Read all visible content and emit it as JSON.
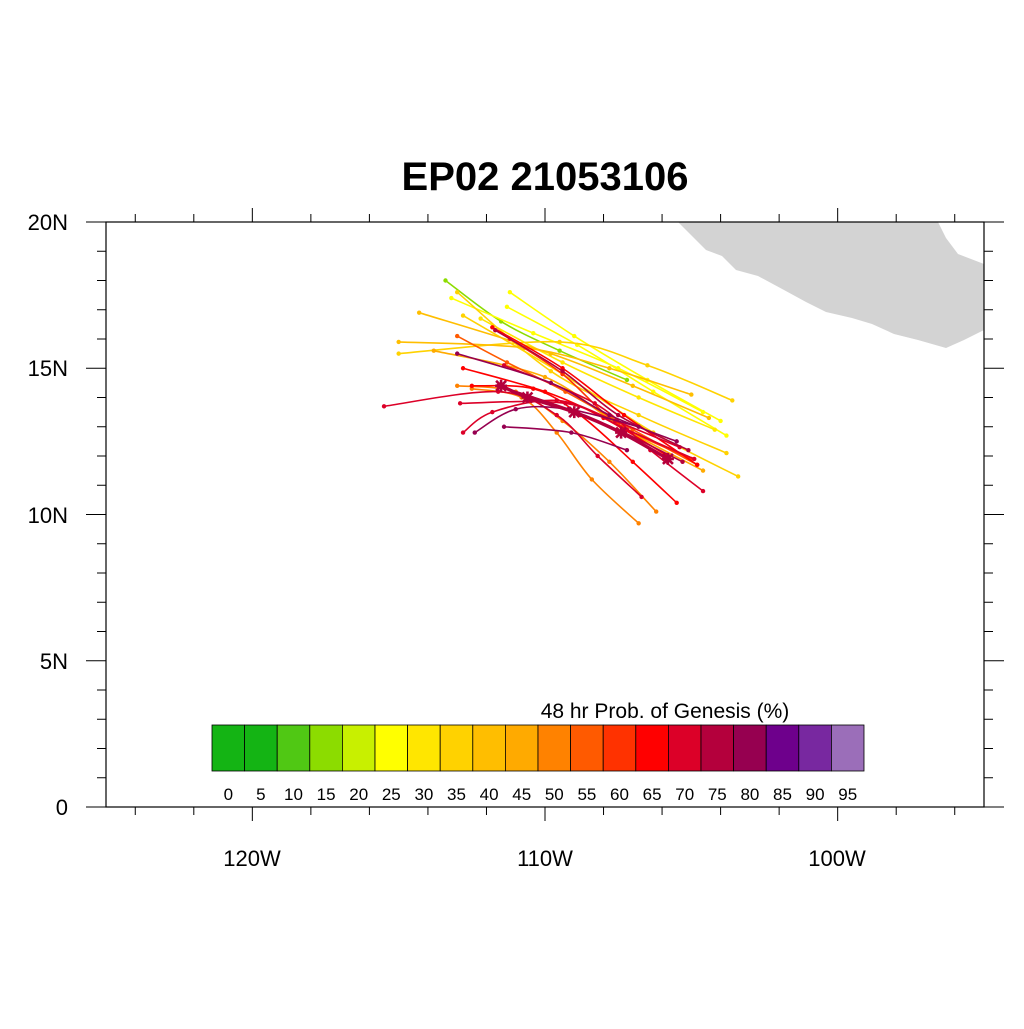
{
  "title": "EP02 21053106",
  "lat_labels": [
    "20N",
    "15N",
    "10N",
    "5N",
    "0"
  ],
  "lon_labels": [
    "120W",
    "110W",
    "100W"
  ],
  "legend": {
    "title": "48 hr Prob. of Genesis (%)",
    "labels": [
      "0",
      "5",
      "10",
      "15",
      "20",
      "25",
      "30",
      "35",
      "40",
      "45",
      "50",
      "55",
      "60",
      "65",
      "70",
      "75",
      "80",
      "85",
      "90",
      "95"
    ],
    "colors": [
      "#14b414",
      "#14b414",
      "#50c814",
      "#8cdc00",
      "#c8f000",
      "#ffff00",
      "#ffe600",
      "#ffd200",
      "#ffbe00",
      "#ffaa00",
      "#ff8200",
      "#ff5a00",
      "#ff3200",
      "#ff0000",
      "#dc0028",
      "#b4003c",
      "#960050",
      "#6e008c",
      "#7828a0",
      "#9b6eb9"
    ]
  },
  "land_color": "#d3d3d3",
  "chart_data": {
    "type": "map-tracks",
    "title": "EP02 21053106",
    "lon_range": [
      -125,
      -95
    ],
    "lat_range": [
      0,
      20
    ],
    "lat_ticks": [
      20,
      15,
      10,
      5,
      0
    ],
    "lon_ticks": [
      -120,
      -110,
      -100
    ],
    "color_scale": "48 hr Prob. of Genesis (%)",
    "mean_track": [
      [
        -105.8,
        11.9
      ],
      [
        -107.4,
        12.8
      ],
      [
        -109.0,
        13.5
      ],
      [
        -110.6,
        14.0
      ],
      [
        -111.5,
        14.4
      ]
    ],
    "tracks": [
      {
        "p": 15,
        "pts": [
          [
            -107.2,
            14.6
          ],
          [
            -109.5,
            15.6
          ],
          [
            -111.5,
            16.6
          ],
          [
            -113.4,
            18.0
          ]
        ]
      },
      {
        "p": 25,
        "pts": [
          [
            -104.0,
            13.2
          ],
          [
            -106.5,
            14.6
          ],
          [
            -109.0,
            16.1
          ],
          [
            -111.2,
            17.6
          ]
        ]
      },
      {
        "p": 25,
        "pts": [
          [
            -103.8,
            12.7
          ],
          [
            -106.3,
            14.2
          ],
          [
            -108.9,
            15.8
          ],
          [
            -111.3,
            17.1
          ]
        ]
      },
      {
        "p": 25,
        "pts": [
          [
            -104.6,
            13.5
          ],
          [
            -107.5,
            15.0
          ],
          [
            -110.4,
            16.2
          ],
          [
            -113.2,
            17.4
          ]
        ]
      },
      {
        "p": 30,
        "pts": [
          [
            -104.2,
            12.9
          ],
          [
            -106.8,
            14.0
          ],
          [
            -109.4,
            15.2
          ],
          [
            -112.2,
            16.7
          ]
        ]
      },
      {
        "p": 35,
        "pts": [
          [
            -103.6,
            13.9
          ],
          [
            -106.5,
            15.1
          ],
          [
            -109.5,
            15.9
          ],
          [
            -115.0,
            15.5
          ]
        ]
      },
      {
        "p": 35,
        "pts": [
          [
            -103.4,
            11.3
          ],
          [
            -106.3,
            12.8
          ],
          [
            -109.4,
            14.8
          ],
          [
            -112.8,
            16.8
          ]
        ]
      },
      {
        "p": 35,
        "pts": [
          [
            -103.8,
            12.1
          ],
          [
            -106.8,
            13.4
          ],
          [
            -109.8,
            14.9
          ],
          [
            -113.0,
            17.6
          ]
        ]
      },
      {
        "p": 40,
        "pts": [
          [
            -104.4,
            13.3
          ],
          [
            -107.0,
            14.4
          ],
          [
            -109.8,
            15.5
          ],
          [
            -114.3,
            16.9
          ]
        ]
      },
      {
        "p": 40,
        "pts": [
          [
            -105.0,
            14.1
          ],
          [
            -107.8,
            15.0
          ],
          [
            -110.7,
            15.7
          ],
          [
            -115.0,
            15.9
          ]
        ]
      },
      {
        "p": 45,
        "pts": [
          [
            -104.6,
            11.5
          ],
          [
            -107.4,
            13.0
          ],
          [
            -110.0,
            14.7
          ],
          [
            -113.8,
            15.6
          ]
        ]
      },
      {
        "p": 50,
        "pts": [
          [
            -106.8,
            9.7
          ],
          [
            -108.4,
            11.2
          ],
          [
            -109.6,
            12.8
          ],
          [
            -110.8,
            14.0
          ],
          [
            -112.5,
            14.3
          ]
        ]
      },
      {
        "p": 50,
        "pts": [
          [
            -106.2,
            10.1
          ],
          [
            -107.8,
            11.8
          ],
          [
            -109.4,
            13.2
          ],
          [
            -111.0,
            14.2
          ],
          [
            -113.0,
            14.4
          ]
        ]
      },
      {
        "p": 55,
        "pts": [
          [
            -104.8,
            11.7
          ],
          [
            -107.0,
            12.9
          ],
          [
            -109.3,
            14.2
          ],
          [
            -111.3,
            15.2
          ],
          [
            -113.0,
            16.1
          ]
        ]
      },
      {
        "p": 60,
        "pts": [
          [
            -105.0,
            11.9
          ],
          [
            -107.5,
            13.1
          ],
          [
            -109.4,
            14.8
          ],
          [
            -111.2,
            16.0
          ]
        ]
      },
      {
        "p": 65,
        "pts": [
          [
            -105.5,
            10.4
          ],
          [
            -107.0,
            11.8
          ],
          [
            -108.8,
            13.4
          ],
          [
            -110.4,
            14.3
          ],
          [
            -112.5,
            14.4
          ]
        ]
      },
      {
        "p": 65,
        "pts": [
          [
            -105.8,
            12.0
          ],
          [
            -108.0,
            13.3
          ],
          [
            -110.0,
            14.2
          ],
          [
            -112.8,
            15.0
          ]
        ]
      },
      {
        "p": 65,
        "pts": [
          [
            -104.8,
            11.7
          ],
          [
            -107.3,
            13.4
          ],
          [
            -109.4,
            15.0
          ],
          [
            -111.8,
            16.4
          ]
        ]
      },
      {
        "p": 70,
        "pts": [
          [
            -106.7,
            10.6
          ],
          [
            -108.2,
            12.0
          ],
          [
            -109.6,
            13.4
          ],
          [
            -111.6,
            14.2
          ],
          [
            -115.5,
            13.7
          ]
        ]
      },
      {
        "p": 70,
        "pts": [
          [
            -104.9,
            11.9
          ],
          [
            -107.2,
            12.9
          ],
          [
            -109.3,
            13.8
          ],
          [
            -112.9,
            13.8
          ]
        ]
      },
      {
        "p": 70,
        "pts": [
          [
            -105.4,
            12.3
          ],
          [
            -107.6,
            13.2
          ],
          [
            -109.6,
            13.9
          ],
          [
            -111.8,
            13.5
          ],
          [
            -112.8,
            12.8
          ]
        ]
      },
      {
        "p": 70,
        "pts": [
          [
            -104.6,
            10.8
          ],
          [
            -106.4,
            12.2
          ],
          [
            -108.3,
            13.8
          ],
          [
            -111.4,
            15.1
          ]
        ]
      },
      {
        "p": 75,
        "pts": [
          [
            -105.1,
            12.2
          ],
          [
            -107.5,
            13.4
          ],
          [
            -109.4,
            14.9
          ],
          [
            -111.7,
            16.3
          ]
        ]
      },
      {
        "p": 75,
        "pts": [
          [
            -105.3,
            11.8
          ],
          [
            -107.3,
            12.8
          ],
          [
            -109.2,
            13.6
          ],
          [
            -111.6,
            14.4
          ]
        ]
      },
      {
        "p": 80,
        "pts": [
          [
            -105.5,
            12.5
          ],
          [
            -107.8,
            13.4
          ],
          [
            -109.8,
            14.5
          ],
          [
            -113.0,
            15.5
          ]
        ]
      },
      {
        "p": 80,
        "pts": [
          [
            -107.2,
            12.2
          ],
          [
            -109.1,
            12.8
          ],
          [
            -111.4,
            13.0
          ]
        ]
      },
      {
        "p": 80,
        "pts": [
          [
            -106.8,
            13.0
          ],
          [
            -109.2,
            13.6
          ],
          [
            -111.0,
            13.6
          ],
          [
            -112.4,
            12.8
          ]
        ]
      }
    ]
  }
}
